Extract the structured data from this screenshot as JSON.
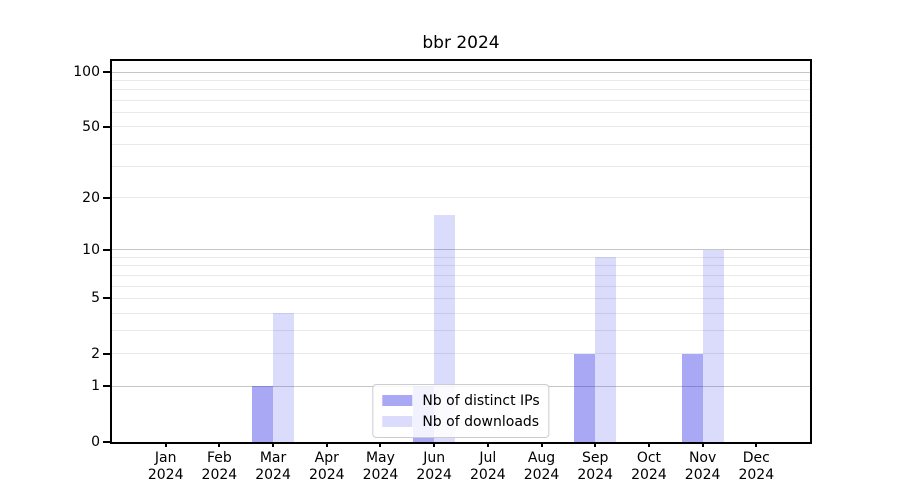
{
  "title": "bbr 2024",
  "chart_data": {
    "type": "bar",
    "title": "bbr 2024",
    "categories": [
      "Jan",
      "Feb",
      "Mar",
      "Apr",
      "May",
      "Jun",
      "Jul",
      "Aug",
      "Sep",
      "Oct",
      "Nov",
      "Dec"
    ],
    "category_year": "2024",
    "series": [
      {
        "name": "Nb of distinct IPs",
        "color": "rgba(30,30,230,0.39)",
        "values": [
          0,
          0,
          1,
          0,
          0,
          1,
          0,
          0,
          2,
          0,
          2,
          0
        ]
      },
      {
        "name": "Nb of downloads",
        "color": "rgba(30,30,230,0.16)",
        "values": [
          0,
          0,
          4,
          0,
          0,
          16,
          0,
          0,
          9,
          0,
          10,
          0
        ]
      }
    ],
    "yscale": "log1p",
    "ylim": [
      0,
      115
    ],
    "yticks": [
      100,
      50,
      20,
      10,
      5,
      2,
      1,
      0
    ],
    "major_gridlines": [
      1,
      10,
      100
    ],
    "minor_gridlines": [
      2,
      3,
      4,
      5,
      6,
      7,
      8,
      9,
      20,
      30,
      40,
      50,
      60,
      70,
      80,
      90
    ],
    "xlabel": "",
    "ylabel": "",
    "grid": true,
    "legend_position": "lower center"
  }
}
